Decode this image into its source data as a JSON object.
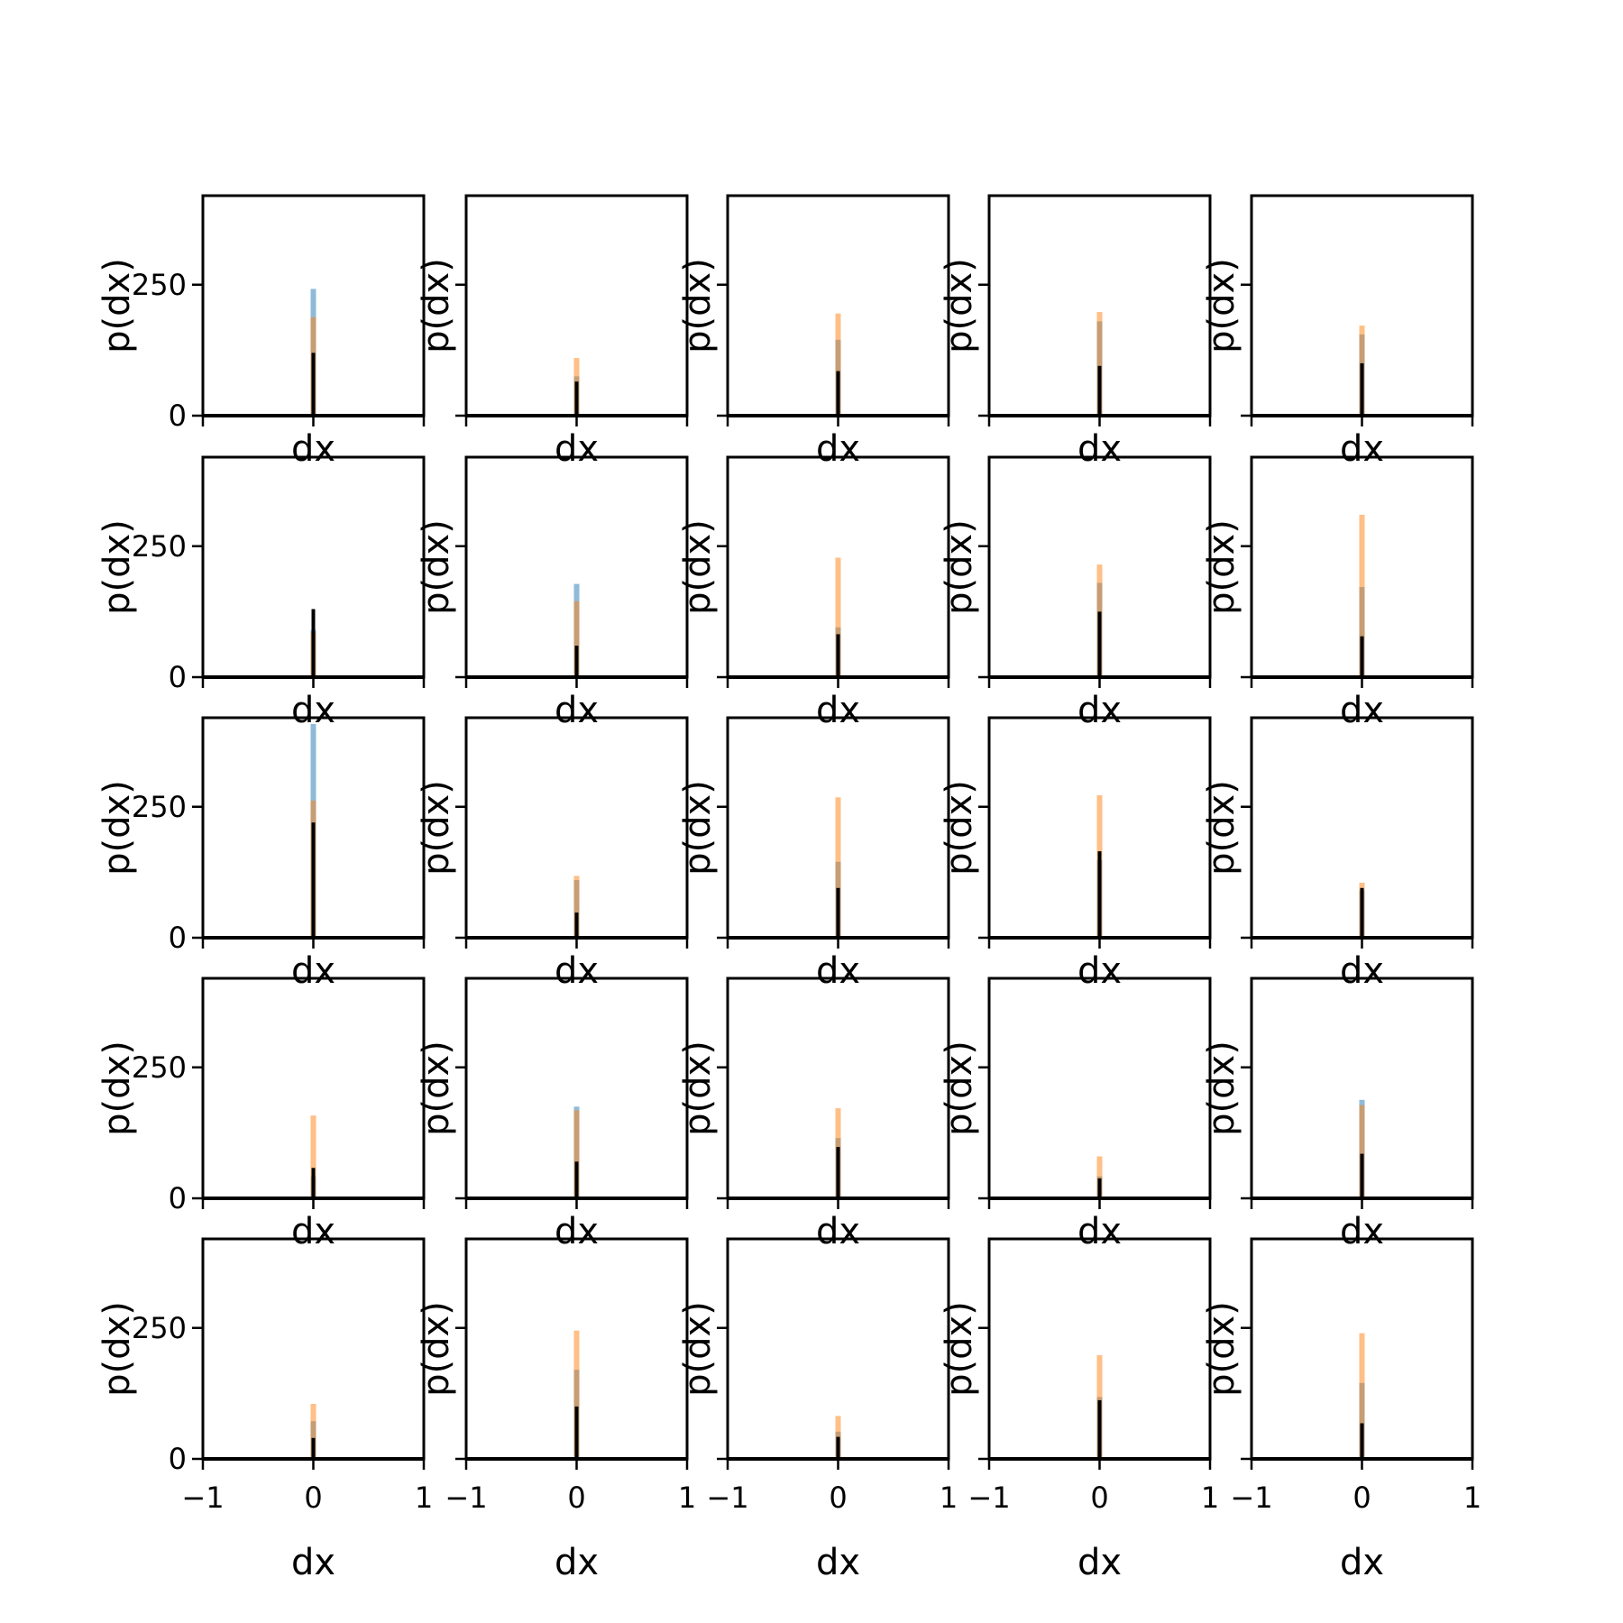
{
  "chart_data": {
    "type": "histogram-grid",
    "rows": 5,
    "cols": 5,
    "xlabel": "dx",
    "ylabel": "p(dx)",
    "xlim": [
      -1,
      1
    ],
    "ylim": [
      0,
      420
    ],
    "xticks": [
      -1,
      0,
      1
    ],
    "yticks": [
      0,
      250
    ],
    "xtick_labels": [
      "−1",
      "0",
      "1"
    ],
    "ytick_labels": [
      "0",
      "250"
    ],
    "colors": {
      "blue": "#1f77b4",
      "orange": "#ff7f0e",
      "black": "#000000"
    },
    "series_order": [
      "blue",
      "orange",
      "black"
    ],
    "panels": [
      {
        "blue": 242,
        "orange": 188,
        "black": 120
      },
      {
        "blue": 75,
        "orange": 110,
        "black": 65
      },
      {
        "blue": 145,
        "orange": 195,
        "black": 85
      },
      {
        "blue": 180,
        "orange": 198,
        "black": 95
      },
      {
        "blue": 155,
        "orange": 172,
        "black": 100
      },
      {
        "blue": 90,
        "orange": 85,
        "black": 130
      },
      {
        "blue": 178,
        "orange": 145,
        "black": 60
      },
      {
        "blue": 95,
        "orange": 228,
        "black": 82
      },
      {
        "blue": 180,
        "orange": 215,
        "black": 125
      },
      {
        "blue": 172,
        "orange": 310,
        "black": 78
      },
      {
        "blue": 408,
        "orange": 262,
        "black": 220
      },
      {
        "blue": 110,
        "orange": 118,
        "black": 48
      },
      {
        "blue": 145,
        "orange": 268,
        "black": 95
      },
      {
        "blue": 148,
        "orange": 272,
        "black": 165
      },
      {
        "blue": 90,
        "orange": 105,
        "black": 95
      },
      {
        "blue": 42,
        "orange": 158,
        "black": 58
      },
      {
        "blue": 175,
        "orange": 168,
        "black": 70
      },
      {
        "blue": 115,
        "orange": 172,
        "black": 98
      },
      {
        "blue": 42,
        "orange": 80,
        "black": 38
      },
      {
        "blue": 188,
        "orange": 178,
        "black": 85
      },
      {
        "blue": 72,
        "orange": 105,
        "black": 40
      },
      {
        "blue": 170,
        "orange": 245,
        "black": 100
      },
      {
        "blue": 52,
        "orange": 82,
        "black": 42
      },
      {
        "blue": 118,
        "orange": 198,
        "black": 112
      },
      {
        "blue": 145,
        "orange": 240,
        "black": 68
      }
    ]
  }
}
